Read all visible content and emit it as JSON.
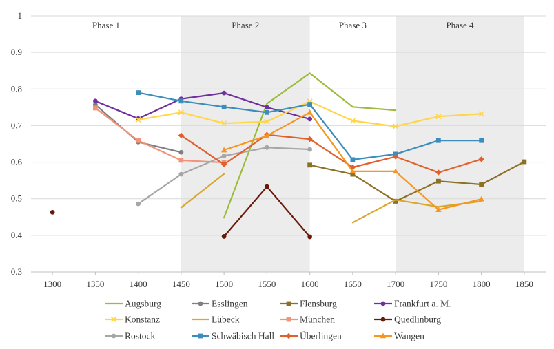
{
  "chart_data": {
    "type": "line",
    "x": [
      1300,
      1350,
      1400,
      1450,
      1500,
      1550,
      1600,
      1650,
      1700,
      1750,
      1800,
      1850
    ],
    "ylim": [
      0.3,
      1
    ],
    "yticks": [
      "0.3",
      "0.4",
      "0.5",
      "0.6",
      "0.7",
      "0.8",
      "0.9",
      "1"
    ],
    "xticks": [
      "1300",
      "1350",
      "1400",
      "1450",
      "1500",
      "1550",
      "1600",
      "1650",
      "1700",
      "1750",
      "1800",
      "1850"
    ],
    "grid": "horizontal",
    "legend_position": "bottom",
    "phases": [
      {
        "label": "Phase 1",
        "start": 1275,
        "end": 1450,
        "shaded": false
      },
      {
        "label": "Phase 2",
        "start": 1450,
        "end": 1600,
        "shaded": true
      },
      {
        "label": "Phase 3",
        "start": 1600,
        "end": 1700,
        "shaded": false
      },
      {
        "label": "Phase 4",
        "start": 1700,
        "end": 1850,
        "shaded": true
      }
    ],
    "series": [
      {
        "name": "Augsburg",
        "color": "#9cbb3a",
        "marker": "none",
        "values": [
          null,
          null,
          null,
          null,
          0.448,
          0.76,
          0.843,
          0.751,
          0.742,
          null,
          null,
          null
        ]
      },
      {
        "name": "Esslingen",
        "color": "#7f7f7f",
        "marker": "circle",
        "values": [
          null,
          0.757,
          0.655,
          0.627,
          null,
          null,
          null,
          null,
          null,
          null,
          null,
          null
        ]
      },
      {
        "name": "Flensburg",
        "color": "#8c7023",
        "marker": "square",
        "values": [
          null,
          null,
          null,
          null,
          null,
          null,
          0.592,
          0.567,
          0.493,
          0.548,
          0.539,
          0.601
        ]
      },
      {
        "name": "Frankfurt a. M.",
        "color": "#7030a0",
        "marker": "circle",
        "values": [
          null,
          0.767,
          0.719,
          0.773,
          0.789,
          0.75,
          0.718,
          null,
          null,
          null,
          null,
          null
        ]
      },
      {
        "name": "Konstanz",
        "color": "#ffd54a",
        "marker": "x",
        "values": [
          null,
          null,
          0.716,
          0.736,
          0.706,
          0.711,
          0.766,
          0.713,
          0.698,
          0.725,
          0.732,
          null
        ]
      },
      {
        "name": "Lübeck",
        "color": "#d9a62e",
        "marker": "none",
        "values": [
          null,
          null,
          null,
          0.476,
          0.568,
          null,
          null,
          0.435,
          0.497,
          0.478,
          0.493,
          null
        ]
      },
      {
        "name": "München",
        "color": "#f2937a",
        "marker": "square",
        "values": [
          null,
          0.748,
          0.659,
          0.605,
          0.599,
          null,
          null,
          null,
          null,
          null,
          null,
          null
        ]
      },
      {
        "name": "Quedlinburg",
        "color": "#6a1a08",
        "marker": "circle",
        "values": [
          0.463,
          null,
          null,
          null,
          0.397,
          0.533,
          0.396,
          null,
          null,
          null,
          null,
          null
        ]
      },
      {
        "name": "Rostock",
        "color": "#a6a6a6",
        "marker": "circle",
        "values": [
          null,
          null,
          0.486,
          0.567,
          0.617,
          0.64,
          0.635,
          null,
          null,
          null,
          null,
          null
        ]
      },
      {
        "name": "Schwäbisch Hall",
        "color": "#3c8dbc",
        "marker": "square",
        "values": [
          null,
          null,
          0.79,
          0.767,
          0.751,
          0.736,
          0.758,
          0.607,
          0.622,
          0.659,
          0.659,
          null
        ]
      },
      {
        "name": "Überlingen",
        "color": "#e05f2c",
        "marker": "diamond",
        "values": [
          null,
          null,
          null,
          0.673,
          0.594,
          0.675,
          0.663,
          0.586,
          0.615,
          0.572,
          0.608,
          null
        ]
      },
      {
        "name": "Wangen",
        "color": "#f7951e",
        "marker": "triangle",
        "values": [
          null,
          null,
          null,
          null,
          0.633,
          0.672,
          0.736,
          0.575,
          0.575,
          0.47,
          0.499,
          null
        ]
      }
    ]
  }
}
